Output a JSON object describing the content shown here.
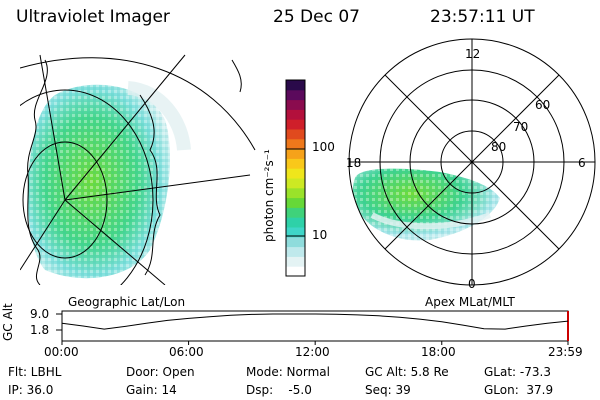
{
  "header": {
    "instrument": "Ultraviolet Imager",
    "date": "25 Dec 07",
    "time": "23:57:11 UT"
  },
  "panels": {
    "left_label": "Geographic Lat/Lon",
    "right_label": "Apex MLat/MLT"
  },
  "colorbar": {
    "label": "photon cm⁻²s⁻¹",
    "ticks": [
      "100",
      "10"
    ],
    "colors": [
      "#ffffff",
      "#e4f3f4",
      "#bfe9ec",
      "#8fdcdc",
      "#3fd6c8",
      "#2ed1a8",
      "#3fd27a",
      "#66d838",
      "#9ae22a",
      "#cde923",
      "#efe61c",
      "#f9c81a",
      "#f6a21a",
      "#ee781b",
      "#e04a1e",
      "#cf1f2a",
      "#b3103c",
      "#8a0b4e",
      "#5b0a5c",
      "#2a0a4a"
    ]
  },
  "polar_plot": {
    "mlt_labels": [
      "12",
      "18",
      "6",
      "0"
    ],
    "mlat_labels": [
      "60",
      "70",
      "80"
    ]
  },
  "chart_data": {
    "type": "line",
    "title": "",
    "ylabel": "GC Alt",
    "yticks": [
      "9.0",
      "1.8"
    ],
    "ylim": [
      1.8,
      9.0
    ],
    "xticks": [
      "00:00",
      "06:00",
      "12:00",
      "18:00",
      "23:59"
    ],
    "x": [
      "00:00",
      "01:00",
      "02:00",
      "03:00",
      "04:00",
      "05:00",
      "06:00",
      "07:00",
      "08:00",
      "09:00",
      "10:00",
      "11:00",
      "12:00",
      "13:00",
      "14:00",
      "15:00",
      "16:00",
      "17:00",
      "18:00",
      "19:00",
      "20:00",
      "21:00",
      "22:00",
      "23:00",
      "23:59"
    ],
    "values": [
      4.8,
      3.6,
      2.2,
      3.4,
      4.8,
      6.1,
      7.0,
      7.8,
      8.4,
      8.8,
      9.0,
      9.0,
      9.0,
      8.9,
      8.6,
      8.2,
      7.5,
      6.6,
      5.5,
      4.0,
      2.4,
      2.2,
      3.6,
      4.8,
      5.8
    ]
  },
  "status": {
    "row1": [
      "Flt: LBHL",
      "Door: Open",
      "Mode: Normal",
      "GC Alt: 5.8 Re",
      "GLat: -73.3"
    ],
    "row2": [
      "IP: 36.0",
      "Gain: 14",
      "Dsp:    -5.0",
      "Seq: 39",
      "GLon:  37.9"
    ]
  }
}
